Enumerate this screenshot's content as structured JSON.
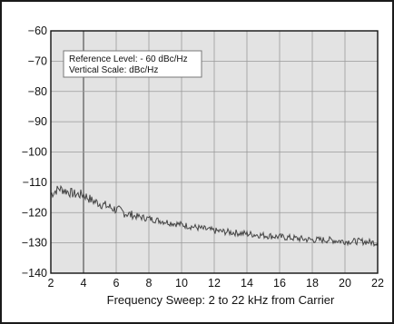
{
  "chart_data": {
    "type": "line",
    "title": "",
    "xlabel": "Frequency Sweep: 2 to 22 kHz from Carrier",
    "ylabel": "",
    "xlim": [
      2,
      22
    ],
    "ylim": [
      -140,
      -60
    ],
    "xticks": [
      2,
      4,
      6,
      8,
      10,
      12,
      14,
      16,
      18,
      20,
      22
    ],
    "yticks": [
      -60,
      -70,
      -80,
      -90,
      -100,
      -110,
      -120,
      -130,
      -140
    ],
    "xtick_labels": [
      "2",
      "4",
      "6",
      "8",
      "10",
      "12",
      "14",
      "16",
      "18",
      "20",
      "22"
    ],
    "ytick_labels": [
      "−60",
      "−70",
      "−80",
      "−90",
      "−100",
      "−110",
      "−120",
      "−130",
      "−140"
    ],
    "grid": true,
    "annotation": {
      "line1": "Reference Level: - 60 dBc/Hz",
      "line2": "Vertical Scale: dBc/Hz"
    },
    "series": [
      {
        "x": [
          2.0,
          2.5,
          3.0,
          3.5,
          4.0,
          4.5,
          5.0,
          5.5,
          6.0,
          7.0,
          8.0,
          9.0,
          10.0,
          11.0,
          12.0,
          13.0,
          14.0,
          15.0,
          16.0,
          17.0,
          18.0,
          19.0,
          20.0,
          21.0,
          22.0
        ],
        "y": [
          -114,
          -112,
          -113,
          -114,
          -114,
          -116,
          -117,
          -118,
          -119,
          -121,
          -122,
          -123,
          -124,
          -125,
          -126,
          -126.5,
          -127,
          -127.5,
          -128,
          -128.5,
          -129,
          -129,
          -129.5,
          -129.5,
          -130
        ]
      }
    ],
    "style": {
      "background": "#e3e3e3",
      "grid_color": "#9a9a9a",
      "line_color": "#444444",
      "axis_color": "#111111"
    }
  }
}
